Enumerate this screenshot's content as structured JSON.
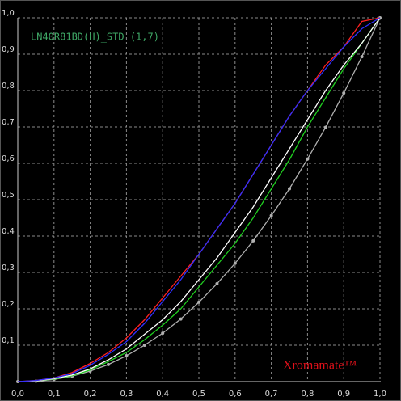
{
  "chart_data": {
    "type": "line",
    "title": "LN40R81BD(H)_STD (1,7)",
    "annotation": "Xromamate™",
    "x": [
      0,
      0.05,
      0.1,
      0.15,
      0.2,
      0.25,
      0.3,
      0.35,
      0.4,
      0.45,
      0.5,
      0.55,
      0.6,
      0.65,
      0.7,
      0.75,
      0.8,
      0.85,
      0.9,
      0.95,
      1
    ],
    "series": [
      {
        "color": "#b0b0b0",
        "markers": true,
        "values": [
          0,
          0.001,
          0.006,
          0.015,
          0.029,
          0.047,
          0.071,
          0.1,
          0.133,
          0.172,
          0.218,
          0.269,
          0.325,
          0.387,
          0.456,
          0.53,
          0.612,
          0.699,
          0.793,
          0.893,
          1
        ]
      },
      {
        "color": "#20d020",
        "values": [
          0,
          0.002,
          0.007,
          0.016,
          0.032,
          0.055,
          0.08,
          0.115,
          0.155,
          0.2,
          0.26,
          0.32,
          0.38,
          0.45,
          0.53,
          0.61,
          0.7,
          0.78,
          0.86,
          0.93,
          1
        ]
      },
      {
        "color": "#ffffff",
        "values": [
          0,
          0.002,
          0.008,
          0.018,
          0.035,
          0.06,
          0.09,
          0.13,
          0.17,
          0.22,
          0.28,
          0.34,
          0.41,
          0.48,
          0.56,
          0.64,
          0.72,
          0.8,
          0.87,
          0.93,
          1
        ]
      },
      {
        "color": "#ff2020",
        "values": [
          0,
          0.003,
          0.01,
          0.025,
          0.05,
          0.08,
          0.12,
          0.17,
          0.23,
          0.29,
          0.35,
          0.42,
          0.49,
          0.57,
          0.65,
          0.73,
          0.8,
          0.87,
          0.92,
          0.99,
          1
        ]
      },
      {
        "color": "#3030ff",
        "values": [
          0,
          0.003,
          0.01,
          0.022,
          0.045,
          0.075,
          0.11,
          0.16,
          0.22,
          0.28,
          0.35,
          0.42,
          0.49,
          0.57,
          0.65,
          0.73,
          0.8,
          0.86,
          0.92,
          0.97,
          1
        ]
      }
    ],
    "xlim": [
      0,
      1
    ],
    "ylim": [
      0,
      1
    ],
    "xticks": [
      {
        "value": 0,
        "label": "0,0"
      },
      {
        "value": 0.1,
        "label": "0,1"
      },
      {
        "value": 0.2,
        "label": "0,2"
      },
      {
        "value": 0.3,
        "label": "0,3"
      },
      {
        "value": 0.4,
        "label": "0,4"
      },
      {
        "value": 0.5,
        "label": "0,5"
      },
      {
        "value": 0.6,
        "label": "0,6"
      },
      {
        "value": 0.7,
        "label": "0,7"
      },
      {
        "value": 0.8,
        "label": "0,8"
      },
      {
        "value": 0.9,
        "label": "0,9"
      },
      {
        "value": 1,
        "label": "1,0"
      }
    ],
    "yticks": [
      {
        "value": 0.1,
        "label": "0,1"
      },
      {
        "value": 0.2,
        "label": "0,2"
      },
      {
        "value": 0.3,
        "label": "0,3"
      },
      {
        "value": 0.4,
        "label": "0,4"
      },
      {
        "value": 0.5,
        "label": "0,5"
      },
      {
        "value": 0.6,
        "label": "0,6"
      },
      {
        "value": 0.7,
        "label": "0,7"
      },
      {
        "value": 0.8,
        "label": "0,8"
      },
      {
        "value": 0.9,
        "label": "0,9"
      },
      {
        "value": 1,
        "label": "1,0"
      }
    ],
    "grid": true
  }
}
